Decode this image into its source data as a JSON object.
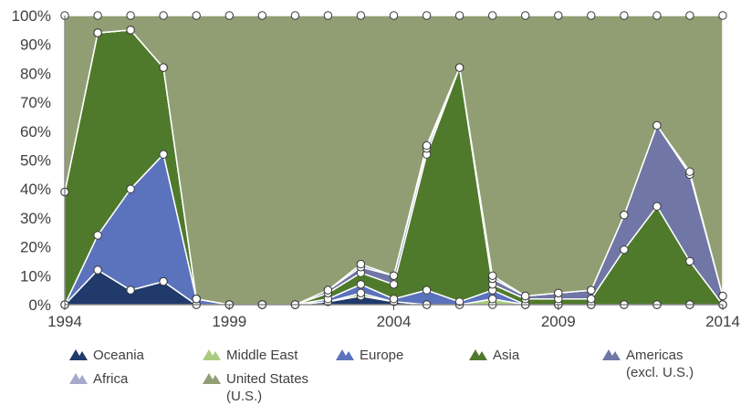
{
  "chart_data": {
    "type": "area",
    "stacked_percent": true,
    "x": [
      1994,
      1995,
      1996,
      1997,
      1998,
      1999,
      2000,
      2001,
      2002,
      2003,
      2004,
      2005,
      2006,
      2007,
      2008,
      2009,
      2010,
      2011,
      2012,
      2013,
      2014
    ],
    "x_ticks": [
      "1994",
      "1999",
      "2004",
      "2009",
      "2014"
    ],
    "y_ticks": [
      "0%",
      "10%",
      "20%",
      "30%",
      "40%",
      "50%",
      "60%",
      "70%",
      "80%",
      "90%",
      "100%"
    ],
    "ylim": [
      0,
      100
    ],
    "series": [
      {
        "name": "Oceania",
        "color": "#1f3a6b",
        "values": [
          0,
          12,
          5,
          8,
          0,
          0,
          0,
          0,
          1,
          3,
          1,
          0,
          0,
          0,
          0,
          0,
          0,
          0,
          0,
          0,
          0
        ]
      },
      {
        "name": "Middle East",
        "color": "#a9cc7f",
        "values": [
          0,
          0,
          0,
          0,
          0,
          0,
          0,
          0,
          0,
          1,
          0,
          0,
          0,
          2,
          0,
          0,
          0,
          0,
          0,
          0,
          0
        ]
      },
      {
        "name": "Europe",
        "color": "#5b72bd",
        "values": [
          0,
          12,
          35,
          44,
          2,
          0,
          0,
          0,
          1,
          3,
          1,
          5,
          1,
          3,
          0,
          0,
          0,
          0,
          0,
          0,
          0
        ]
      },
      {
        "name": "Asia",
        "color": "#4f7a2c",
        "values": [
          39,
          70,
          55,
          30,
          0,
          0,
          0,
          0,
          2,
          4,
          5,
          47,
          81,
          2,
          2,
          2,
          2,
          19,
          34,
          15,
          0
        ]
      },
      {
        "name": "Americas (excl. U.S.)",
        "color": "#7076a5",
        "values": [
          0,
          0,
          0,
          0,
          0,
          0,
          0,
          0,
          1,
          2,
          3,
          2,
          0,
          2,
          1,
          2,
          3,
          12,
          28,
          30,
          3
        ]
      },
      {
        "name": "Africa",
        "color": "#a6a8cc",
        "values": [
          0,
          0,
          0,
          0,
          0,
          0,
          0,
          0,
          0,
          1,
          0,
          1,
          0,
          1,
          0,
          0,
          0,
          0,
          0,
          1,
          0
        ]
      },
      {
        "name": "United States (U.S.)",
        "color": "#919e73",
        "values": [
          61,
          6,
          5,
          18,
          98,
          100,
          100,
          100,
          95,
          86,
          90,
          45,
          18,
          90,
          97,
          96,
          95,
          69,
          38,
          54,
          97
        ]
      }
    ],
    "legend": [
      {
        "label": "Oceania",
        "color": "#1f3a6b"
      },
      {
        "label": "Middle East",
        "color": "#a9cc7f"
      },
      {
        "label": "Europe",
        "color": "#5b72bd"
      },
      {
        "label": "Asia",
        "color": "#4f7a2c"
      },
      {
        "label": "Americas",
        "label2": "(excl. U.S.)",
        "color": "#7076a5"
      },
      {
        "label": "Africa",
        "color": "#a6a8cc"
      },
      {
        "label": "United States",
        "label2": "(U.S.)",
        "color": "#919e73"
      }
    ],
    "legend_placement": "bottom",
    "grid": false
  }
}
